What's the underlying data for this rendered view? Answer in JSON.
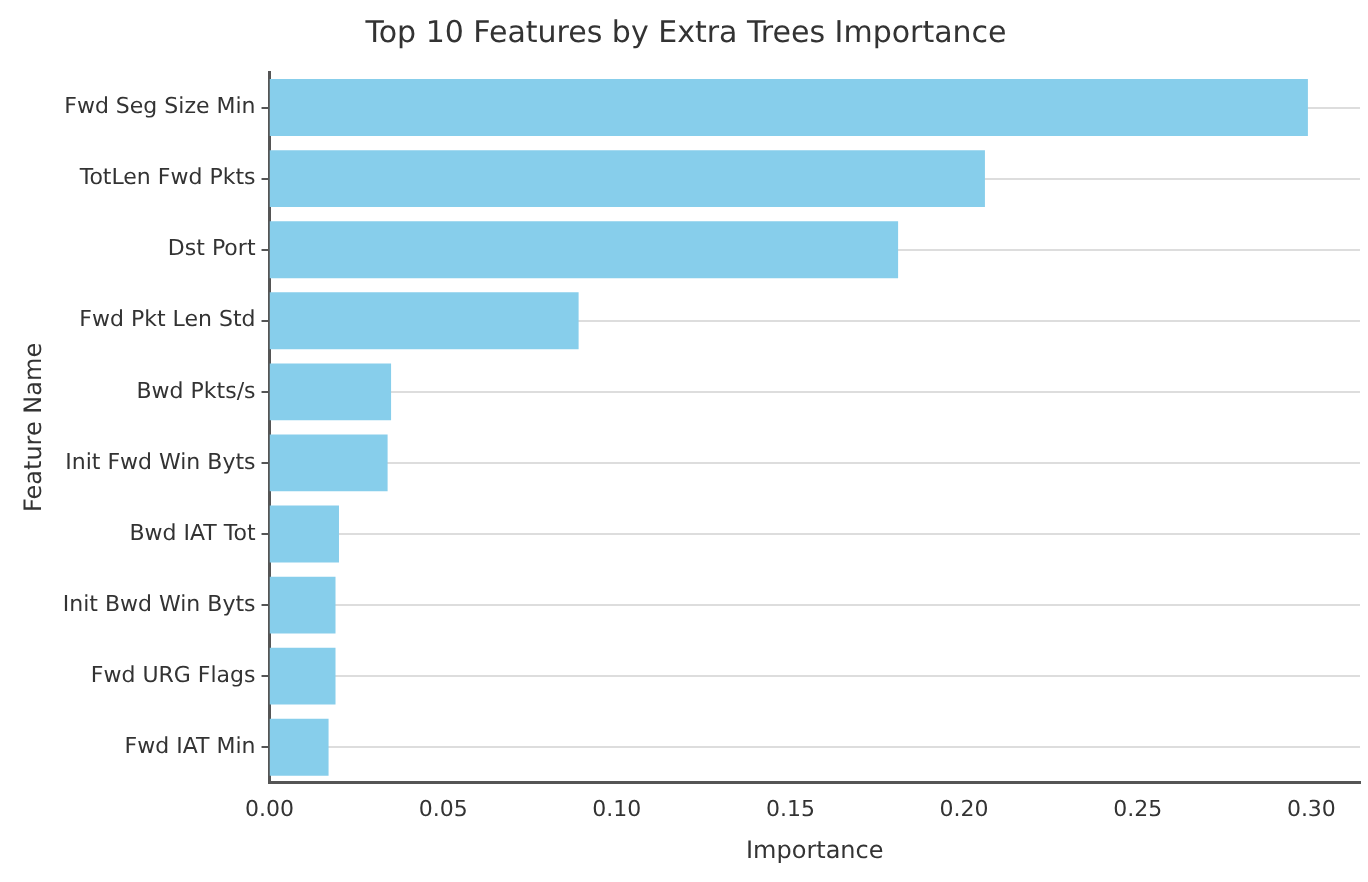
{
  "chart_data": {
    "type": "bar",
    "orientation": "horizontal",
    "title": "Top 10 Features by Extra Trees Importance",
    "xlabel": "Importance",
    "ylabel": "Feature Name",
    "categories": [
      "Fwd Seg Size Min",
      "TotLen Fwd Pkts",
      "Dst Port",
      "Fwd Pkt Len Std",
      "Bwd Pkts/s",
      "Init Fwd Win Byts",
      "Bwd IAT Tot",
      "Init Bwd Win Byts",
      "Fwd URG Flags",
      "Fwd IAT Min"
    ],
    "values": [
      0.299,
      0.206,
      0.181,
      0.089,
      0.035,
      0.034,
      0.02,
      0.019,
      0.019,
      0.017
    ],
    "color": "#87ceeb",
    "xlim": [
      0,
      0.314
    ],
    "xticks": [
      {
        "value": 0,
        "label": "0.00"
      },
      {
        "value": 0.05,
        "label": "0.05"
      },
      {
        "value": 0.1,
        "label": "0.10"
      },
      {
        "value": 0.15,
        "label": "0.15"
      },
      {
        "value": 0.2,
        "label": "0.20"
      },
      {
        "value": 0.25,
        "label": "0.25"
      },
      {
        "value": 0.3,
        "label": "0.30"
      }
    ],
    "grid": "y",
    "legend": false
  }
}
